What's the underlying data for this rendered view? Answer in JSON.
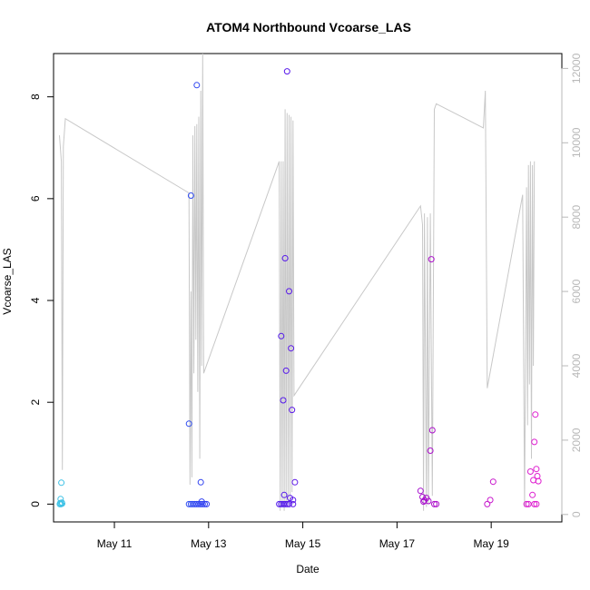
{
  "chart_data": {
    "type": "scatter",
    "title": "ATOM4 Northbound Vcoarse_LAS",
    "xlabel": "Date",
    "ylabel": "Vcoarse_LAS",
    "xlim": [
      "2016-05-09T17:00",
      "2016-05-20T12:00"
    ],
    "ylim": [
      -0.35,
      8.85
    ],
    "y2lim": [
      -200,
      12400
    ],
    "x_ticks": [
      {
        "t": "2016-05-11T00:00",
        "label": "May 11"
      },
      {
        "t": "2016-05-13T00:00",
        "label": "May 13"
      },
      {
        "t": "2016-05-15T00:00",
        "label": "May 15"
      },
      {
        "t": "2016-05-17T00:00",
        "label": "May 17"
      },
      {
        "t": "2016-05-19T00:00",
        "label": "May 19"
      }
    ],
    "y_ticks": [
      0,
      2,
      4,
      6,
      8
    ],
    "y2_ticks": [
      0,
      2000,
      4000,
      6000,
      8000,
      10000,
      12000
    ],
    "grid": false,
    "legend": "none",
    "colors": {
      "line": "#c8c8c8",
      "right_axis": "#b8b8b8",
      "point_colors_by_time": [
        "#3fc3e6",
        "#2a6af0",
        "#3a1af0",
        "#8a1ae0",
        "#b010c8",
        "#e020d0"
      ]
    },
    "series": [
      {
        "kind": "points",
        "axis": "left",
        "points": [
          [
            "2016-05-09T21:00",
            0.42
          ],
          [
            "2016-05-09T20:36",
            0.1
          ],
          [
            "2016-05-09T20:24",
            0.02
          ],
          [
            "2016-05-09T20:48",
            0.0
          ],
          [
            "2016-05-09T21:12",
            0.03
          ],
          [
            "2016-05-09T21:24",
            0.01
          ],
          [
            "2016-05-09T20:12",
            0.0
          ],
          [
            "2016-05-12T14:00",
            1.58
          ],
          [
            "2016-05-12T15:00",
            6.06
          ],
          [
            "2016-05-12T18:00",
            8.23
          ],
          [
            "2016-05-12T20:00",
            0.43
          ],
          [
            "2016-05-12T20:30",
            0.05
          ],
          [
            "2016-05-12T14:00",
            0.0
          ],
          [
            "2016-05-12T15:00",
            0.0
          ],
          [
            "2016-05-12T16:00",
            0.0
          ],
          [
            "2016-05-12T17:00",
            0.0
          ],
          [
            "2016-05-12T18:00",
            0.0
          ],
          [
            "2016-05-12T19:00",
            0.0
          ],
          [
            "2016-05-12T20:00",
            0.0
          ],
          [
            "2016-05-12T21:00",
            0.0
          ],
          [
            "2016-05-12T22:00",
            0.0
          ],
          [
            "2016-05-12T23:00",
            0.0
          ],
          [
            "2016-05-14T13:00",
            3.3
          ],
          [
            "2016-05-14T15:00",
            4.83
          ],
          [
            "2016-05-14T16:00",
            8.5
          ],
          [
            "2016-05-14T17:00",
            4.18
          ],
          [
            "2016-05-14T15:30",
            2.62
          ],
          [
            "2016-05-14T14:00",
            2.04
          ],
          [
            "2016-05-14T18:00",
            3.06
          ],
          [
            "2016-05-14T18:30",
            1.85
          ],
          [
            "2016-05-14T20:00",
            0.43
          ],
          [
            "2016-05-14T14:30",
            0.18
          ],
          [
            "2016-05-14T17:30",
            0.12
          ],
          [
            "2016-05-14T19:00",
            0.08
          ],
          [
            "2016-05-14T12:00",
            0.0
          ],
          [
            "2016-05-14T13:00",
            0.0
          ],
          [
            "2016-05-14T14:00",
            0.0
          ],
          [
            "2016-05-14T15:00",
            0.0
          ],
          [
            "2016-05-14T16:00",
            0.0
          ],
          [
            "2016-05-14T17:00",
            0.0
          ],
          [
            "2016-05-14T19:00",
            0.0
          ],
          [
            "2016-05-17T12:00",
            0.26
          ],
          [
            "2016-05-17T13:00",
            0.14
          ],
          [
            "2016-05-17T14:00",
            0.07
          ],
          [
            "2016-05-17T15:00",
            0.12
          ],
          [
            "2016-05-17T16:00",
            0.06
          ],
          [
            "2016-05-17T17:00",
            1.05
          ],
          [
            "2016-05-17T17:30",
            4.81
          ],
          [
            "2016-05-17T18:00",
            1.45
          ],
          [
            "2016-05-17T19:00",
            0.0
          ],
          [
            "2016-05-17T20:00",
            0.0
          ],
          [
            "2016-05-17T13:30",
            0.05
          ],
          [
            "2016-05-18T22:00",
            0.0
          ],
          [
            "2016-05-18T23:30",
            0.08
          ],
          [
            "2016-05-19T01:00",
            0.44
          ],
          [
            "2016-05-19T18:00",
            0.0
          ],
          [
            "2016-05-19T19:00",
            0.0
          ],
          [
            "2016-05-19T20:00",
            0.64
          ],
          [
            "2016-05-19T21:00",
            0.18
          ],
          [
            "2016-05-19T21:30",
            0.47
          ],
          [
            "2016-05-19T22:00",
            1.22
          ],
          [
            "2016-05-19T22:30",
            1.76
          ],
          [
            "2016-05-19T23:00",
            0.69
          ],
          [
            "2016-05-19T23:30",
            0.55
          ],
          [
            "2016-05-20T00:00",
            0.45
          ],
          [
            "2016-05-19T22:00",
            0.0
          ],
          [
            "2016-05-19T23:00",
            0.0
          ]
        ]
      },
      {
        "kind": "line",
        "axis": "right",
        "points": [
          [
            "2016-05-09T20:00",
            10200
          ],
          [
            "2016-05-09T21:00",
            9500
          ],
          [
            "2016-05-09T21:30",
            1200
          ],
          [
            "2016-05-09T22:00",
            9900
          ],
          [
            "2016-05-09T23:00",
            10650
          ],
          [
            "2016-05-12T14:00",
            8650
          ],
          [
            "2016-05-12T14:30",
            800
          ],
          [
            "2016-05-12T15:00",
            6000
          ],
          [
            "2016-05-12T15:30",
            1000
          ],
          [
            "2016-05-12T16:00",
            10200
          ],
          [
            "2016-05-12T16:30",
            3800
          ],
          [
            "2016-05-12T17:00",
            10450
          ],
          [
            "2016-05-12T17:30",
            4700
          ],
          [
            "2016-05-12T18:00",
            10500
          ],
          [
            "2016-05-12T18:30",
            3300
          ],
          [
            "2016-05-12T19:00",
            10700
          ],
          [
            "2016-05-12T19:30",
            1500
          ],
          [
            "2016-05-12T20:00",
            11400
          ],
          [
            "2016-05-12T20:30",
            4000
          ],
          [
            "2016-05-12T21:00",
            12400
          ],
          [
            "2016-05-12T21:30",
            3800
          ],
          [
            "2016-05-14T12:00",
            9500
          ],
          [
            "2016-05-14T12:30",
            100
          ],
          [
            "2016-05-14T13:00",
            9500
          ],
          [
            "2016-05-14T13:30",
            200
          ],
          [
            "2016-05-14T14:00",
            9500
          ],
          [
            "2016-05-14T14:30",
            100
          ],
          [
            "2016-05-14T15:00",
            10900
          ],
          [
            "2016-05-14T15:30",
            200
          ],
          [
            "2016-05-14T16:00",
            10800
          ],
          [
            "2016-05-14T16:30",
            300
          ],
          [
            "2016-05-14T17:00",
            10750
          ],
          [
            "2016-05-14T17:30",
            400
          ],
          [
            "2016-05-14T18:00",
            10700
          ],
          [
            "2016-05-14T18:30",
            600
          ],
          [
            "2016-05-14T19:00",
            10600
          ],
          [
            "2016-05-14T19:30",
            3200
          ],
          [
            "2016-05-17T12:00",
            8300
          ],
          [
            "2016-05-17T13:00",
            7800
          ],
          [
            "2016-05-17T13:30",
            100
          ],
          [
            "2016-05-17T14:00",
            8100
          ],
          [
            "2016-05-17T15:00",
            200
          ],
          [
            "2016-05-17T15:30",
            8000
          ],
          [
            "2016-05-17T16:00",
            300
          ],
          [
            "2016-05-17T17:00",
            8100
          ],
          [
            "2016-05-17T18:00",
            500
          ],
          [
            "2016-05-17T19:00",
            10900
          ],
          [
            "2016-05-17T20:00",
            11050
          ],
          [
            "2016-05-18T20:00",
            10400
          ],
          [
            "2016-05-18T21:00",
            11400
          ],
          [
            "2016-05-18T22:00",
            3400
          ],
          [
            "2016-05-19T16:00",
            8600
          ],
          [
            "2016-05-19T17:00",
            200
          ],
          [
            "2016-05-19T18:00",
            8800
          ],
          [
            "2016-05-19T18:30",
            2400
          ],
          [
            "2016-05-19T19:00",
            9400
          ],
          [
            "2016-05-19T19:30",
            3500
          ],
          [
            "2016-05-19T20:00",
            9500
          ],
          [
            "2016-05-19T20:30",
            1500
          ],
          [
            "2016-05-19T21:00",
            9400
          ],
          [
            "2016-05-19T21:30",
            4000
          ],
          [
            "2016-05-19T22:00",
            9500
          ]
        ]
      }
    ]
  }
}
